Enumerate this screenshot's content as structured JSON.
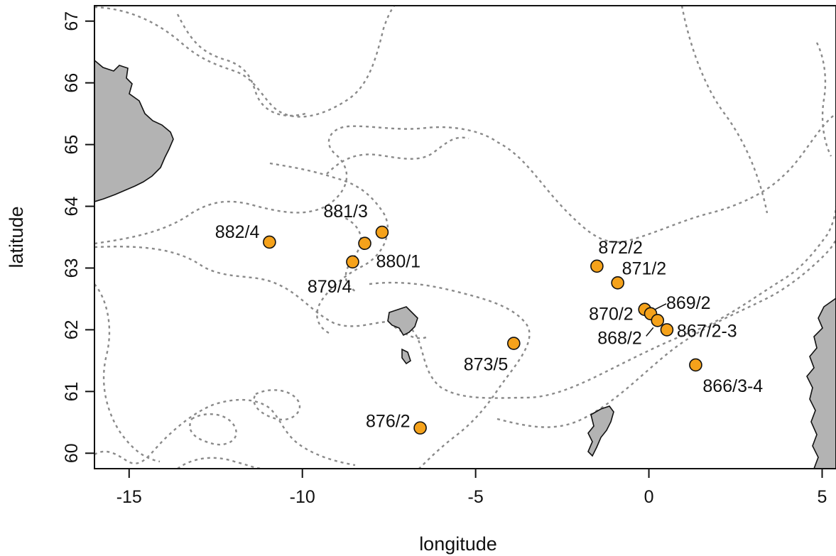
{
  "chart_data": {
    "type": "scatter",
    "xlabel": "longitude",
    "ylabel": "latitude",
    "xlim": [
      -16.0,
      5.4
    ],
    "ylim": [
      59.75,
      67.25
    ],
    "x_ticks": [
      -15,
      -10,
      -5,
      0,
      5
    ],
    "y_ticks": [
      60,
      61,
      62,
      63,
      64,
      65,
      66,
      67
    ],
    "grid": false,
    "marker_color": "#f5a21b",
    "land_color": "#b3b3b3",
    "contour_color": "#8a8a8a",
    "stations": [
      {
        "label": "882/4",
        "lon": -10.95,
        "lat": 63.42
      },
      {
        "label": "881/3",
        "lon": -7.7,
        "lat": 63.58
      },
      {
        "label": "880/1",
        "lon": -8.2,
        "lat": 63.4
      },
      {
        "label": "879/4",
        "lon": -8.55,
        "lat": 63.1
      },
      {
        "label": "873/5",
        "lon": -3.9,
        "lat": 61.78
      },
      {
        "label": "876/2",
        "lon": -6.6,
        "lat": 60.41
      },
      {
        "label": "872/2",
        "lon": -1.5,
        "lat": 63.03
      },
      {
        "label": "871/2",
        "lon": -0.9,
        "lat": 62.76
      },
      {
        "label": "870/2",
        "lon": -0.12,
        "lat": 62.33
      },
      {
        "label": "869/2",
        "lon": 0.05,
        "lat": 62.26
      },
      {
        "label": "868/2",
        "lon": 0.25,
        "lat": 62.15
      },
      {
        "label": "867/2-3",
        "lon": 0.52,
        "lat": 62.0
      },
      {
        "label": "866/3-4",
        "lon": 1.35,
        "lat": 61.43
      }
    ]
  }
}
